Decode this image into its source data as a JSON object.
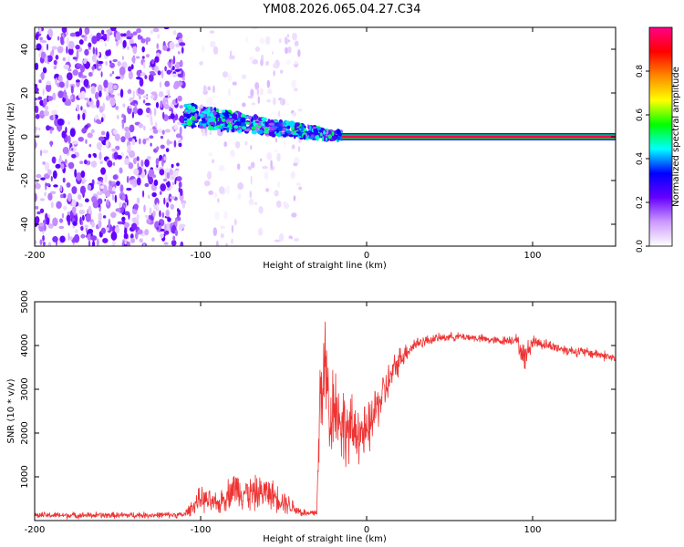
{
  "title": "YM08.2026.065.04.27.C34",
  "colors": {
    "snr_line": "#ee3333",
    "frame": "#000000"
  },
  "chart_data": [
    {
      "type": "heatmap",
      "name": "spectrogram",
      "title": "YM08.2026.065.04.27.C34",
      "xlabel": "Height of straight line (km)",
      "ylabel": "Frequency (Hz)",
      "xlim": [
        -200,
        150
      ],
      "ylim": [
        -50,
        50
      ],
      "xticks": [
        -200,
        -100,
        0,
        100
      ],
      "yticks": [
        -40,
        -20,
        0,
        20,
        40
      ],
      "colorbar": {
        "label": "Normalized spectral amplitude",
        "range": [
          0,
          1
        ],
        "ticks": [
          0,
          0.2,
          0.4,
          0.6,
          0.8
        ],
        "tick_labels": [
          "0.0",
          "0.2",
          "0.4",
          "0.6",
          "0.8"
        ],
        "colormap": [
          "#ffffff",
          "#cc99ff",
          "#6600ff",
          "#0000ff",
          "#00ffff",
          "#00ff00",
          "#ffff00",
          "#ff8800",
          "#ff0000",
          "#ff0088"
        ]
      },
      "regions": [
        {
          "desc": "broadband noise",
          "x_range": [
            -200,
            -110
          ],
          "freq_range": [
            -50,
            50
          ],
          "amplitude": 0.15
        },
        {
          "desc": "scattered weak returns",
          "x_range": [
            -100,
            -40
          ],
          "freq_range": [
            -50,
            50
          ],
          "amplitude": 0.05
        },
        {
          "desc": "descending echo",
          "x_start": -110,
          "x_end": -15,
          "freq_start": 10,
          "freq_end": 0,
          "amplitude": 0.45
        },
        {
          "desc": "steady carrier",
          "x_range": [
            -15,
            150
          ],
          "freq": 0,
          "amplitude": 0.95
        }
      ]
    },
    {
      "type": "line",
      "name": "snr",
      "xlabel": "Height of straight line (km)",
      "ylabel": "SNR (10 * v/v)",
      "xlim": [
        -200,
        150
      ],
      "ylim": [
        0,
        5000
      ],
      "xticks": [
        -200,
        -100,
        0,
        100
      ],
      "yticks": [
        1000,
        2000,
        3000,
        4000,
        5000
      ],
      "series": [
        {
          "name": "SNR",
          "color": "#ee3333",
          "x": [
            -200,
            -150,
            -110,
            -100,
            -90,
            -80,
            -70,
            -60,
            -50,
            -40,
            -35,
            -30,
            -28,
            -25,
            -22,
            -20,
            -15,
            -10,
            -5,
            0,
            5,
            10,
            15,
            20,
            25,
            30,
            40,
            50,
            60,
            70,
            80,
            90,
            95,
            100,
            110,
            120,
            130,
            140,
            150
          ],
          "y": [
            120,
            120,
            130,
            500,
            350,
            750,
            600,
            650,
            450,
            200,
            150,
            200,
            2800,
            3600,
            2300,
            2800,
            2200,
            2000,
            2100,
            1900,
            2500,
            2900,
            3300,
            3700,
            3900,
            4050,
            4150,
            4200,
            4200,
            4150,
            4100,
            4150,
            3700,
            4100,
            4000,
            3900,
            3850,
            3800,
            3700
          ],
          "noise": [
            90,
            90,
            90,
            350,
            300,
            500,
            500,
            450,
            350,
            150,
            100,
            150,
            1500,
            1400,
            1500,
            1200,
            1100,
            1000,
            900,
            800,
            700,
            600,
            500,
            350,
            250,
            200,
            130,
            120,
            120,
            120,
            120,
            150,
            400,
            200,
            150,
            150,
            150,
            150,
            150
          ]
        }
      ]
    }
  ]
}
